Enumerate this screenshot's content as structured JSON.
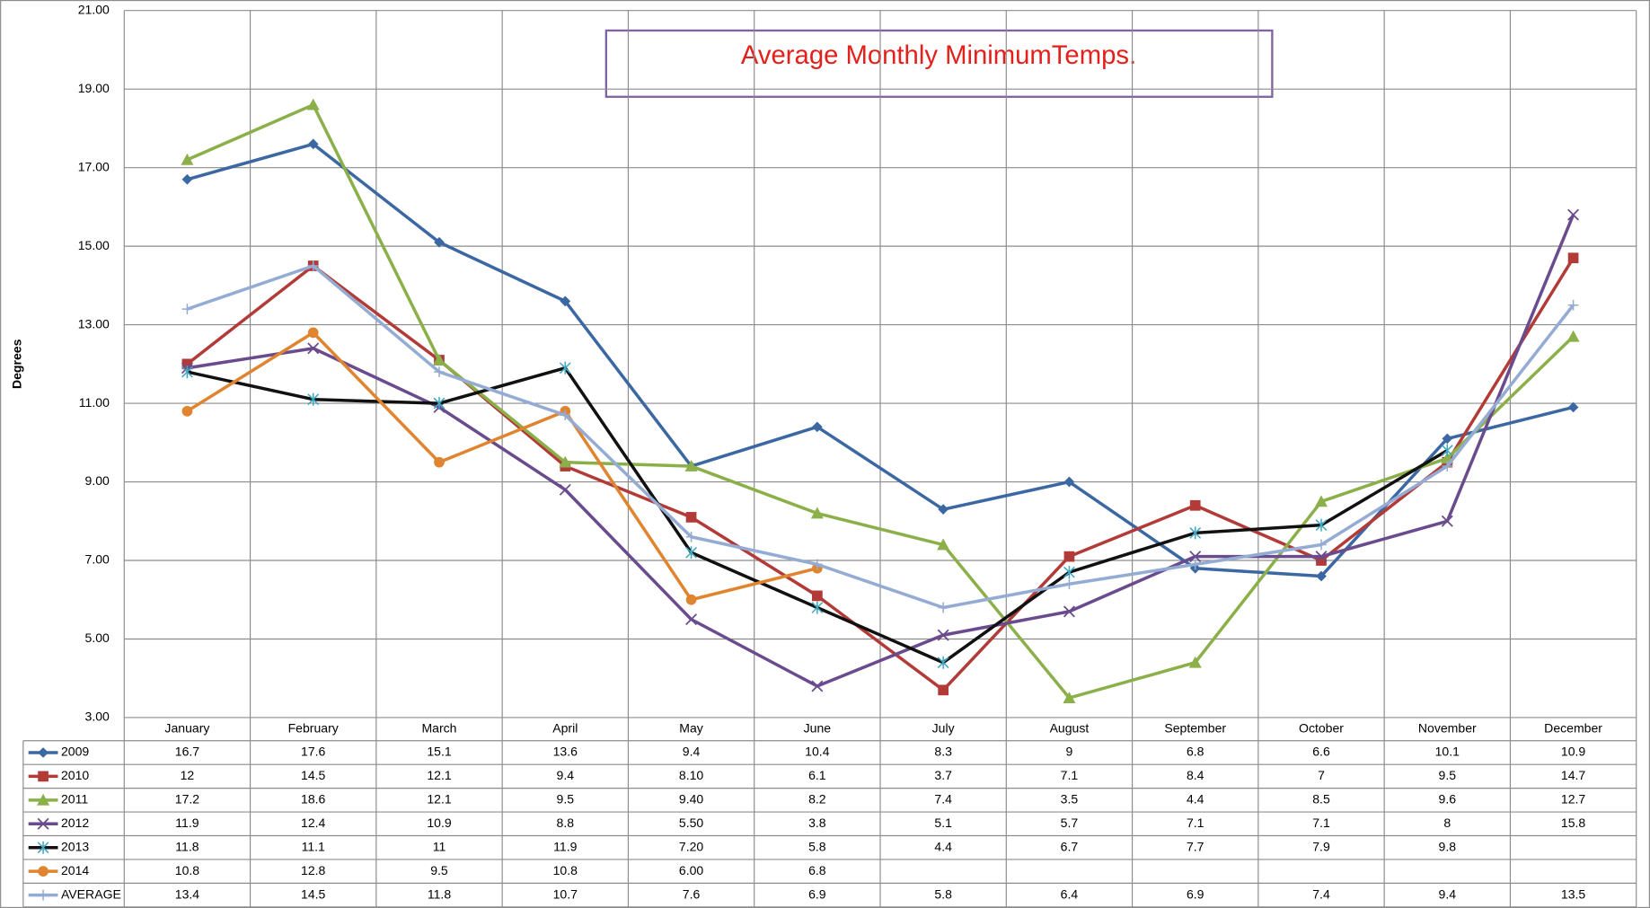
{
  "chart_data": {
    "type": "line",
    "title": "Average Monthly MinimumTemps.",
    "y_label": "Degrees",
    "categories": [
      "January",
      "February",
      "March",
      "April",
      "May",
      "June",
      "July",
      "August",
      "September",
      "October",
      "November",
      "December"
    ],
    "ylim": [
      3,
      21
    ],
    "yticks": [
      {
        "value": 3,
        "label": "3.00"
      },
      {
        "value": 5,
        "label": "5.00"
      },
      {
        "value": 7,
        "label": "7.00"
      },
      {
        "value": 9,
        "label": "9.00"
      },
      {
        "value": 11,
        "label": "11.00"
      },
      {
        "value": 13,
        "label": "13.00"
      },
      {
        "value": 15,
        "label": "15.00"
      },
      {
        "value": 17,
        "label": "17.00"
      },
      {
        "value": 19,
        "label": "19.00"
      },
      {
        "value": 21,
        "label": "21.00"
      }
    ],
    "grid": true,
    "data_table": true,
    "series": [
      {
        "name": "2009",
        "color": "#3b68a3",
        "marker_color": "#3b68a3",
        "marker": "diamond",
        "values": [
          16.7,
          17.6,
          15.1,
          13.6,
          9.4,
          10.4,
          8.3,
          9,
          6.8,
          6.6,
          10.1,
          10.9
        ],
        "value_labels": [
          "16.7",
          "17.6",
          "15.1",
          "13.6",
          "9.4",
          "10.4",
          "8.3",
          "9",
          "6.8",
          "6.6",
          "10.1",
          "10.9"
        ]
      },
      {
        "name": "2010",
        "color": "#b23b38",
        "marker_color": "#b23b38",
        "marker": "square",
        "values": [
          12,
          14.5,
          12.1,
          9.4,
          8.1,
          6.1,
          3.7,
          7.1,
          8.4,
          7,
          9.5,
          14.7
        ],
        "value_labels": [
          "12",
          "14.5",
          "12.1",
          "9.4",
          "8.10",
          "6.1",
          "3.7",
          "7.1",
          "8.4",
          "7",
          "9.5",
          "14.7"
        ]
      },
      {
        "name": "2011",
        "color": "#8bb04a",
        "marker_color": "#8bb04a",
        "marker": "triangle",
        "values": [
          17.2,
          18.6,
          12.1,
          9.5,
          9.4,
          8.2,
          7.4,
          3.5,
          4.4,
          8.5,
          9.6,
          12.7
        ],
        "value_labels": [
          "17.2",
          "18.6",
          "12.1",
          "9.5",
          "9.40",
          "8.2",
          "7.4",
          "3.5",
          "4.4",
          "8.5",
          "9.6",
          "12.7"
        ]
      },
      {
        "name": "2012",
        "color": "#6a4b8d",
        "marker_color": "#6a4b8d",
        "marker": "x",
        "values": [
          11.9,
          12.4,
          10.9,
          8.8,
          5.5,
          3.8,
          5.1,
          5.7,
          7.1,
          7.1,
          8,
          15.8
        ],
        "value_labels": [
          "11.9",
          "12.4",
          "10.9",
          "8.8",
          "5.50",
          "3.8",
          "5.1",
          "5.7",
          "7.1",
          "7.1",
          "8",
          "15.8"
        ]
      },
      {
        "name": "2013",
        "color": "#111111",
        "marker_color": "#3fa7c2",
        "marker": "asterisk",
        "values": [
          11.8,
          11.1,
          11,
          11.9,
          7.2,
          5.8,
          4.4,
          6.7,
          7.7,
          7.9,
          9.8,
          null
        ],
        "value_labels": [
          "11.8",
          "11.1",
          "11",
          "11.9",
          "7.20",
          "5.8",
          "4.4",
          "6.7",
          "7.7",
          "7.9",
          "9.8",
          null
        ]
      },
      {
        "name": "2014",
        "color": "#e08430",
        "marker_color": "#e08430",
        "marker": "circle",
        "values": [
          10.8,
          12.8,
          9.5,
          10.8,
          6,
          6.8,
          null,
          null,
          null,
          null,
          null,
          null
        ],
        "value_labels": [
          "10.8",
          "12.8",
          "9.5",
          "10.8",
          "6.00",
          "6.8",
          null,
          null,
          null,
          null,
          null,
          null
        ]
      },
      {
        "name": "AVERAGE",
        "color": "#94acd4",
        "marker_color": "#94acd4",
        "marker": "plus",
        "values": [
          13.4,
          14.5,
          11.8,
          10.7,
          7.6,
          6.9,
          5.8,
          6.4,
          6.9,
          7.4,
          9.4,
          13.5
        ],
        "value_labels": [
          "13.4",
          "14.5",
          "11.8",
          "10.7",
          "7.6",
          "6.9",
          "5.8",
          "6.4",
          "6.9",
          "7.4",
          "9.4",
          "13.5"
        ]
      }
    ]
  }
}
